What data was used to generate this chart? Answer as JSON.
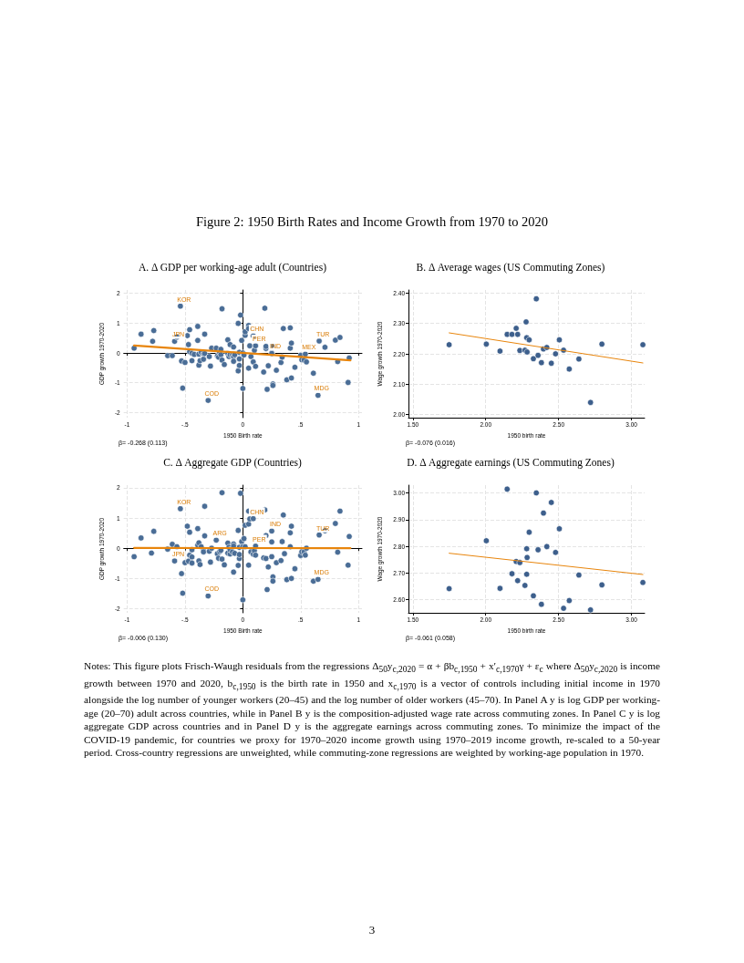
{
  "chart_data": [
    {
      "type": "scatter",
      "title": "A. Δ GDP per working-age adult (Countries)",
      "xlabel": "1950 Birth rate",
      "ylabel": "GDP growth 1970-2020",
      "annotations": [
        "Figure 2: 1950 Birth Rates and Income Growth from 1970 to 2020",
        "β= -0.268 (0.113)",
        {
          "text": "KOR",
          "x": -0.54,
          "y": 1.57
        },
        {
          "text": "JPN",
          "x": -0.59,
          "y": 0.39
        },
        {
          "text": "COD",
          "x": -0.3,
          "y": -1.59
        },
        {
          "text": "CHN",
          "x": 0.09,
          "y": 0.57
        },
        {
          "text": "PER",
          "x": 0.11,
          "y": 0.24
        },
        {
          "text": "IND",
          "x": 0.25,
          "y": 0.0
        },
        {
          "text": "MEX",
          "x": 0.54,
          "y": -0.04
        },
        {
          "text": "TUR",
          "x": 0.66,
          "y": 0.4
        },
        {
          "text": "MDG",
          "x": 0.65,
          "y": -1.42
        }
      ],
      "xlim": [
        -1.03,
        1.03
      ],
      "xticks": [
        -1,
        {
          "value": -0.5,
          "label": "-.5"
        },
        0,
        {
          "value": 0.5,
          "label": ".5"
        },
        1
      ],
      "ylim": [
        -2.17,
        2.11
      ],
      "yticks": [
        -2,
        -1,
        0,
        1,
        2
      ],
      "grid": true,
      "marker": "circle",
      "series": [
        {
          "color": "#4a6d96",
          "x": [
            -0.94,
            -0.88,
            -0.78,
            -0.77,
            -0.65,
            -0.61,
            -0.59,
            -0.57,
            -0.54,
            -0.53,
            -0.52,
            -0.5,
            -0.48,
            -0.47,
            -0.46,
            -0.46,
            -0.44,
            -0.44,
            -0.42,
            -0.39,
            -0.39,
            -0.38,
            -0.38,
            -0.37,
            -0.36,
            -0.34,
            -0.34,
            -0.33,
            -0.33,
            -0.3,
            -0.29,
            -0.28,
            -0.27,
            -0.23,
            -0.22,
            -0.21,
            -0.2,
            -0.19,
            -0.19,
            -0.18,
            -0.18,
            -0.16,
            -0.13,
            -0.13,
            -0.12,
            -0.11,
            -0.11,
            -0.09,
            -0.08,
            -0.08,
            -0.08,
            -0.07,
            -0.04,
            -0.04,
            -0.03,
            -0.03,
            -0.03,
            -0.02,
            -0.01,
            0.0,
            0.0,
            0.01,
            0.02,
            0.02,
            0.05,
            0.05,
            0.05,
            0.06,
            0.07,
            0.09,
            0.09,
            0.1,
            0.11,
            0.11,
            0.18,
            0.19,
            0.2,
            0.2,
            0.21,
            0.22,
            0.25,
            0.25,
            0.25,
            0.26,
            0.26,
            0.29,
            0.33,
            0.34,
            0.35,
            0.38,
            0.41,
            0.41,
            0.42,
            0.42,
            0.45,
            0.5,
            0.51,
            0.53,
            0.54,
            0.55,
            0.61,
            0.65,
            0.66,
            0.71,
            0.8,
            0.82,
            0.84,
            0.91,
            0.92
          ],
          "values": [
            0.16,
            0.63,
            0.39,
            0.75,
            -0.09,
            -0.09,
            0.39,
            0.53,
            1.57,
            -0.27,
            -1.18,
            -0.32,
            0.58,
            0.28,
            0.78,
            0.04,
            -0.01,
            -0.26,
            -0.05,
            0.89,
            0.42,
            -0.41,
            -0.04,
            -0.26,
            0.02,
            -0.02,
            -0.21,
            -0.02,
            0.63,
            -1.59,
            -0.12,
            -0.44,
            0.16,
            0.16,
            -0.1,
            -0.14,
            0.01,
            0.12,
            -0.06,
            1.48,
            -0.24,
            -0.39,
            -0.02,
            0.44,
            -0.12,
            0.28,
            -0.06,
            -0.07,
            0.2,
            -0.12,
            -0.28,
            -0.06,
            0.99,
            -0.6,
            -0.42,
            -0.2,
            0.02,
            1.27,
            0.42,
            -1.19,
            0.0,
            -0.07,
            0.59,
            0.71,
            -0.51,
            0.92,
            0.82,
            0.24,
            -0.12,
            -0.3,
            0.57,
            0.09,
            0.24,
            -0.45,
            -0.64,
            1.5,
            0.15,
            0.22,
            -1.22,
            -0.43,
            0.0,
            0.25,
            -0.02,
            -1.04,
            -1.09,
            -0.58,
            -0.32,
            -0.14,
            0.82,
            -0.9,
            0.84,
            0.16,
            0.33,
            -0.84,
            -0.48,
            -0.08,
            -0.23,
            -0.24,
            -0.04,
            -0.3,
            -0.68,
            -1.42,
            0.4,
            0.19,
            0.43,
            -0.29,
            0.52,
            -0.99,
            -0.17
          ]
        },
        {
          "type": "line",
          "color": "#e8850c",
          "marker": "none",
          "x": [
            -0.94,
            0.93
          ],
          "values": [
            0.25,
            -0.25
          ]
        }
      ]
    },
    {
      "type": "scatter",
      "title": "B. Δ Average wages (US Commuting Zones)",
      "xlabel": "1950 birth rate",
      "ylabel": "Wage growth 1970-2020",
      "annotations": [
        "β= -0.076 (0.016)"
      ],
      "xlim": [
        1.47,
        3.09
      ],
      "xticks": [
        {
          "value": 1.5,
          "label": "1.50"
        },
        {
          "value": 2,
          "label": "2.00"
        },
        {
          "value": 2.5,
          "label": "2.50"
        },
        {
          "value": 3,
          "label": "3.00"
        }
      ],
      "ylim": [
        1.99,
        2.41
      ],
      "yticks": [
        {
          "value": 2,
          "label": "2.00"
        },
        {
          "value": 2.1,
          "label": "2.10"
        },
        {
          "value": 2.2,
          "label": "2.20"
        },
        {
          "value": 2.3,
          "label": "2.30"
        },
        {
          "value": 2.4,
          "label": "2.40"
        }
      ],
      "grid": true,
      "marker": "circle",
      "series": [
        {
          "color": "#3d5f8c",
          "x": [
            1.749,
            2.004,
            2.098,
            2.147,
            2.18,
            2.209,
            2.219,
            2.234,
            2.269,
            2.277,
            2.281,
            2.284,
            2.298,
            2.327,
            2.347,
            2.359,
            2.382,
            2.396,
            2.419,
            2.45,
            2.479,
            2.505,
            2.534,
            2.573,
            2.639,
            2.719,
            2.797,
            3.078
          ],
          "values": [
            2.23,
            2.232,
            2.209,
            2.264,
            2.264,
            2.284,
            2.264,
            2.211,
            2.212,
            2.305,
            2.253,
            2.206,
            2.246,
            2.184,
            2.381,
            2.195,
            2.171,
            2.216,
            2.221,
            2.169,
            2.2,
            2.246,
            2.212,
            2.15,
            2.183,
            2.04,
            2.232,
            2.23
          ]
        },
        {
          "type": "line",
          "color": "#e8850c",
          "marker": "none",
          "x": [
            1.749,
            3.078
          ],
          "values": [
            2.269,
            2.17
          ]
        }
      ]
    },
    {
      "type": "scatter",
      "title": "C. Δ Aggregate GDP (Countries)",
      "xlabel": "1950 Birth rate",
      "ylabel": "GDP growth 1970-2020",
      "annotations": [
        "β= -0.006 (0.130)",
        {
          "text": "KOR",
          "x": -0.54,
          "y": 1.31
        },
        {
          "text": "JPN",
          "x": -0.59,
          "y": -0.42
        },
        {
          "text": "ARG",
          "x": -0.23,
          "y": 0.27
        },
        {
          "text": "COD",
          "x": -0.3,
          "y": -1.58
        },
        {
          "text": "CHN",
          "x": 0.09,
          "y": 0.98
        },
        {
          "text": "PER",
          "x": 0.11,
          "y": 0.07
        },
        {
          "text": "IND",
          "x": 0.25,
          "y": 0.57
        },
        {
          "text": "TUR",
          "x": 0.66,
          "y": 0.44
        },
        {
          "text": "MDG",
          "x": 0.65,
          "y": -1.03
        }
      ],
      "xlim": [
        -1.03,
        1.03
      ],
      "xticks": [
        -1,
        {
          "value": -0.5,
          "label": "-.5"
        },
        0,
        {
          "value": 0.5,
          "label": ".5"
        },
        1
      ],
      "ylim": [
        -2.14,
        2.09
      ],
      "yticks": [
        -2,
        -1,
        0,
        1,
        2
      ],
      "grid": true,
      "marker": "circle",
      "series": [
        {
          "color": "#4a6d96",
          "x": [
            -0.94,
            -0.88,
            -0.79,
            -0.77,
            -0.65,
            -0.61,
            -0.59,
            -0.57,
            -0.54,
            -0.53,
            -0.52,
            -0.5,
            -0.48,
            -0.47,
            -0.46,
            -0.46,
            -0.44,
            -0.44,
            -0.44,
            -0.39,
            -0.39,
            -0.38,
            -0.38,
            -0.37,
            -0.36,
            -0.34,
            -0.34,
            -0.33,
            -0.33,
            -0.3,
            -0.29,
            -0.28,
            -0.27,
            -0.23,
            -0.22,
            -0.21,
            -0.2,
            -0.19,
            -0.18,
            -0.18,
            -0.16,
            -0.13,
            -0.13,
            -0.12,
            -0.11,
            -0.11,
            -0.09,
            -0.08,
            -0.08,
            -0.08,
            -0.07,
            -0.04,
            -0.04,
            -0.03,
            -0.03,
            -0.03,
            -0.02,
            -0.01,
            0.0,
            0.0,
            0.01,
            0.02,
            0.02,
            0.05,
            0.05,
            0.05,
            0.06,
            0.07,
            0.09,
            0.09,
            0.1,
            0.11,
            0.11,
            0.18,
            0.19,
            0.2,
            0.2,
            0.21,
            0.22,
            0.25,
            0.25,
            0.25,
            0.26,
            0.26,
            0.29,
            0.33,
            0.34,
            0.35,
            0.36,
            0.38,
            0.41,
            0.41,
            0.42,
            0.42,
            0.45,
            0.5,
            0.51,
            0.53,
            0.54,
            0.55,
            0.61,
            0.65,
            0.66,
            0.71,
            0.8,
            0.82,
            0.84,
            0.91,
            0.92
          ],
          "values": [
            -0.28,
            0.34,
            -0.16,
            0.56,
            -0.03,
            0.13,
            -0.42,
            0.05,
            1.31,
            -0.84,
            -1.49,
            -0.48,
            0.73,
            -0.43,
            0.53,
            -0.23,
            -0.05,
            -0.29,
            -0.49,
            0.1,
            0.65,
            -0.42,
            0.18,
            -0.54,
            0.05,
            -0.08,
            -0.12,
            0.41,
            1.39,
            -1.58,
            -0.1,
            -0.46,
            0.0,
            0.27,
            -0.18,
            -0.33,
            -0.11,
            -0.07,
            1.84,
            -0.36,
            -0.55,
            0.17,
            -0.16,
            0.03,
            -0.19,
            -0.05,
            -0.12,
            -0.79,
            0.14,
            0.07,
            -0.17,
            0.59,
            -0.57,
            -0.34,
            -0.21,
            0.03,
            1.82,
            0.22,
            -1.71,
            0.05,
            0.32,
            0.76,
            0.05,
            -0.56,
            1.23,
            0.8,
            0.97,
            -0.12,
            -0.2,
            0.98,
            -0.08,
            0.07,
            -0.23,
            -0.32,
            1.27,
            -0.34,
            0.42,
            -1.37,
            -0.62,
            0.57,
            0.21,
            -0.28,
            -0.95,
            -1.09,
            -0.48,
            -0.41,
            0.22,
            1.1,
            -0.18,
            -1.04,
            0.51,
            0.05,
            0.73,
            -1.0,
            -0.68,
            -0.24,
            -0.12,
            -0.12,
            -0.23,
            0.0,
            -1.09,
            -1.03,
            0.44,
            0.58,
            0.82,
            -0.13,
            1.23,
            -0.56,
            0.39
          ]
        },
        {
          "type": "line",
          "color": "#e8850c",
          "marker": "none",
          "x": [
            -0.94,
            0.93
          ],
          "values": [
            0.01,
            0.0
          ]
        }
      ]
    },
    {
      "type": "scatter",
      "title": "D. Δ Aggregate earnings (US Commuting Zones)",
      "xlabel": "1950 birth rate",
      "ylabel": "Wage growth 1970-2020",
      "annotations": [
        "β= -0.061 (0.058)",
        "Notes: This figure plots Frisch-Waugh residuals from the regressions Δ$_{50}$y$_{c,2020}$ = α + βb$_{c,1950}$ + x′$_{c,1970}$γ + ε$_{c}$ where Δ$_{50}$y$_{c,2020}$ is income growth between 1970 and 2020, b$_{c,1950}$ is the birth rate in 1950 and x$_{c,1970}$ is a vector of controls including initial income in 1970 alongside the log number of younger workers (20–45) and the log number of older workers (45–70). In Panel A y is log GDP per working-age (20–70) adult across countries, while in Panel B y is the composition-adjusted wage rate across commuting zones. In Panel C y is log aggregate GDP across countries and in Panel D y is the aggregate earnings across commuting zones. To minimize the impact of the COVID-19 pandemic, for countries we proxy for 1970–2020 income growth using 1970–2019 income growth, re-scaled to a 50-year period. Cross-country regressions are unweighted, while commuting-zone regressions are weighted by working-age population in 1970.",
        "3"
      ],
      "xlim": [
        1.47,
        3.09
      ],
      "xticks": [
        {
          "value": 1.5,
          "label": "1.50"
        },
        {
          "value": 2,
          "label": "2.00"
        },
        {
          "value": 2.5,
          "label": "2.50"
        },
        {
          "value": 3,
          "label": "3.00"
        }
      ],
      "ylim": [
        2.55,
        3.03
      ],
      "yticks": [
        {
          "value": 2.6,
          "label": "2.60"
        },
        {
          "value": 2.7,
          "label": "2.70"
        },
        {
          "value": 2.8,
          "label": "2.80"
        },
        {
          "value": 2.9,
          "label": "2.90"
        },
        {
          "value": 3,
          "label": "3.00"
        }
      ],
      "grid": true,
      "marker": "circle",
      "series": [
        {
          "color": "#3d5f8c",
          "x": [
            1.749,
            2.004,
            2.098,
            2.147,
            2.18,
            2.209,
            2.219,
            2.234,
            2.269,
            2.281,
            2.284,
            2.281,
            2.298,
            2.327,
            2.347,
            2.359,
            2.382,
            2.396,
            2.419,
            2.45,
            2.479,
            2.505,
            2.534,
            2.573,
            2.639,
            2.719,
            2.797,
            3.078
          ],
          "values": [
            2.641,
            2.821,
            2.642,
            3.015,
            2.697,
            2.743,
            2.671,
            2.739,
            2.653,
            2.791,
            2.758,
            2.695,
            2.853,
            2.614,
            3.001,
            2.787,
            2.582,
            2.925,
            2.799,
            2.965,
            2.777,
            2.866,
            2.567,
            2.596,
            2.692,
            2.561,
            2.655,
            2.664
          ]
        },
        {
          "type": "line",
          "color": "#e8850c",
          "marker": "none",
          "x": [
            1.749,
            3.078
          ],
          "values": [
            2.774,
            2.694
          ]
        }
      ]
    }
  ]
}
